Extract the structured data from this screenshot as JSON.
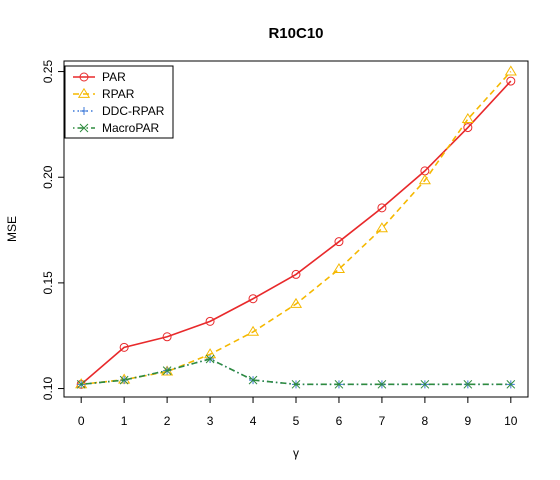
{
  "chart_data": {
    "type": "line",
    "title": "R10C10",
    "xlabel": "γ",
    "ylabel": "MSE",
    "x": [
      0,
      1,
      2,
      3,
      4,
      5,
      6,
      7,
      8,
      9,
      10
    ],
    "x_tick_labels": [
      "0",
      "1",
      "2",
      "3",
      "4",
      "5",
      "6",
      "7",
      "8",
      "9",
      "10"
    ],
    "y_ticks": [
      0.1,
      0.15,
      0.2,
      0.25
    ],
    "y_tick_labels": [
      "0.10",
      "0.15",
      "0.20",
      "0.25"
    ],
    "xlim": [
      -0.4,
      10.4
    ],
    "ylim": [
      0.096,
      0.255
    ],
    "grid": false,
    "legend_position": "top-left",
    "series": [
      {
        "name": "PAR",
        "color": "#e8292b",
        "line_style": "solid",
        "marker": "circle",
        "values": [
          0.102,
          0.1195,
          0.1245,
          0.1318,
          0.1425,
          0.154,
          0.1695,
          0.1855,
          0.203,
          0.2235,
          0.2455
        ]
      },
      {
        "name": "RPAR",
        "color": "#f5b800",
        "line_style": "dashed",
        "marker": "triangle",
        "values": [
          0.102,
          0.1042,
          0.108,
          0.1162,
          0.1268,
          0.14,
          0.1565,
          0.1758,
          0.1985,
          0.2275,
          0.25
        ]
      },
      {
        "name": "DDC-RPAR",
        "color": "#3c78d8",
        "line_style": "dotted",
        "marker": "plus",
        "values": [
          0.102,
          0.104,
          0.1085,
          0.114,
          0.104,
          0.102,
          0.102,
          0.102,
          0.102,
          0.102,
          0.102
        ]
      },
      {
        "name": "MacroPAR",
        "color": "#2e8b3e",
        "line_style": "dotdash",
        "marker": "cross",
        "values": [
          0.102,
          0.104,
          0.1085,
          0.114,
          0.104,
          0.102,
          0.102,
          0.102,
          0.102,
          0.102,
          0.102
        ]
      }
    ]
  }
}
